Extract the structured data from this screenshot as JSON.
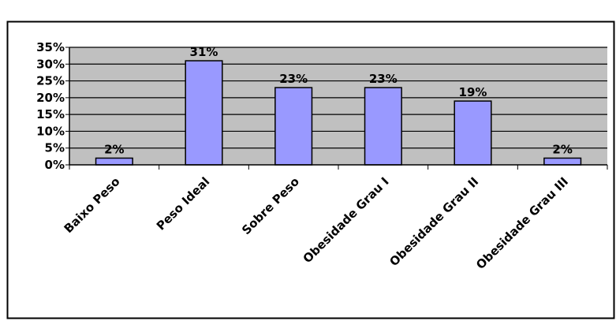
{
  "chart_data": {
    "type": "bar",
    "categories": [
      "Baixo Peso",
      "Peso Ideal",
      "Sobre Peso",
      "Obesidade Grau I",
      "Obesidade Grau II",
      "Obesidade Grau III"
    ],
    "values": [
      2,
      31,
      23,
      23,
      19,
      2
    ],
    "data_labels": [
      "2%",
      "31%",
      "23%",
      "23%",
      "19%",
      "2%"
    ],
    "y_ticks": [
      0,
      5,
      10,
      15,
      20,
      25,
      30,
      35
    ],
    "y_tick_labels": [
      "0%",
      "5%",
      "10%",
      "15%",
      "20%",
      "25%",
      "30%",
      "35%"
    ],
    "ylim": [
      0,
      35
    ],
    "grid": true,
    "legend": "none",
    "colors": {
      "bar_fill": "#9999FF",
      "bar_stroke": "#000000",
      "plot_background": "#C0C0C0",
      "gridline": "#000000"
    }
  }
}
